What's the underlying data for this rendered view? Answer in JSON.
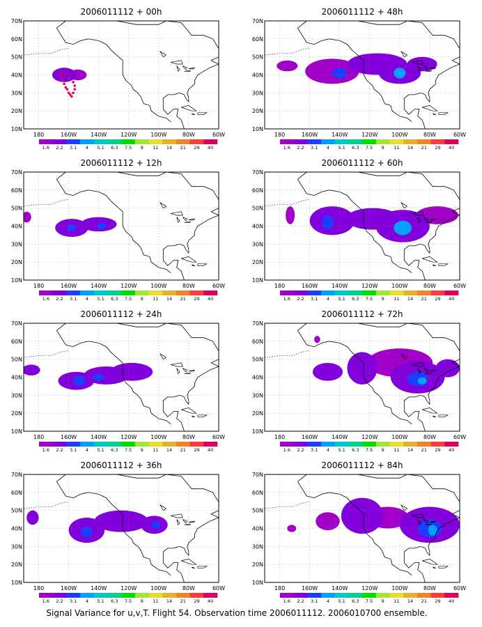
{
  "caption": "Signal Variance for u,v,T. Flight 54. Observation time 2006011112. 2006010700 ensemble.",
  "colors": {
    "scale": [
      "#a000c8",
      "#8200dc",
      "#1e3cff",
      "#00a0ff",
      "#00c8c8",
      "#00d28c",
      "#00dc00",
      "#a0e632",
      "#e6dc32",
      "#e6af2d",
      "#f08228",
      "#fa3c3c",
      "#dc0064"
    ],
    "frame": "#000000",
    "grid": "#808080",
    "background": "#ffffff"
  },
  "chart_data": [
    {
      "type": "heatmap",
      "title": "2006011112 + 00h",
      "xticks": [
        "180",
        "160W",
        "140W",
        "120W",
        "100W",
        "80W",
        "60W"
      ],
      "yticks": [
        "10N",
        "20N",
        "30N",
        "40N",
        "50N",
        "60N",
        "70N"
      ],
      "xlim": [
        -190,
        -60
      ],
      "ylim": [
        10,
        70
      ],
      "colorbar_labels": [
        "1.6",
        "2.2",
        "3.1",
        "4",
        "5.1",
        "6.3",
        "7.5",
        "9",
        "11",
        "14",
        "21",
        "29",
        "40"
      ],
      "blobs": [
        {
          "lon": -163,
          "lat": 40,
          "rx": 8,
          "ry": 4,
          "level": 1
        },
        {
          "lon": -154,
          "lat": 40,
          "rx": 6,
          "ry": 3,
          "level": 0
        }
      ],
      "track": [
        [
          -165,
          39
        ],
        [
          -164,
          37
        ],
        [
          -163,
          35
        ],
        [
          -162,
          33
        ],
        [
          -161,
          32
        ],
        [
          -160,
          30
        ],
        [
          -159,
          29
        ],
        [
          -158,
          28
        ],
        [
          -157,
          30
        ],
        [
          -156,
          32
        ],
        [
          -156,
          34
        ],
        [
          -157,
          36
        ],
        [
          -160,
          38
        ],
        [
          -162,
          41
        ],
        [
          -165,
          41
        ]
      ]
    },
    {
      "type": "heatmap",
      "title": "2006011112 + 48h",
      "xticks": [
        "180",
        "160W",
        "140W",
        "120W",
        "100W",
        "80W",
        "60W"
      ],
      "yticks": [
        "10N",
        "20N",
        "30N",
        "40N",
        "50N",
        "60N",
        "70N"
      ],
      "xlim": [
        -190,
        -60
      ],
      "ylim": [
        10,
        70
      ],
      "colorbar_labels": [
        "1.6",
        "2.2",
        "3.1",
        "4",
        "5.1",
        "6.3",
        "7.5",
        "9",
        "11",
        "14",
        "21",
        "29",
        "40"
      ],
      "blobs": [
        {
          "lon": -175,
          "lat": 45,
          "rx": 7,
          "ry": 3,
          "level": 0
        },
        {
          "lon": -145,
          "lat": 42,
          "rx": 18,
          "ry": 7,
          "level": 0
        },
        {
          "lon": -115,
          "lat": 46,
          "rx": 20,
          "ry": 6,
          "level": 1
        },
        {
          "lon": -100,
          "lat": 41,
          "rx": 14,
          "ry": 6,
          "level": 1
        },
        {
          "lon": -100,
          "lat": 41,
          "rx": 4,
          "ry": 3,
          "level": 3
        },
        {
          "lon": -140,
          "lat": 41,
          "rx": 5,
          "ry": 3,
          "level": 2
        },
        {
          "lon": -85,
          "lat": 46,
          "rx": 10,
          "ry": 4,
          "level": 1
        }
      ],
      "track": []
    },
    {
      "type": "heatmap",
      "title": "2006011112 + 12h",
      "xticks": [
        "180",
        "160W",
        "140W",
        "120W",
        "100W",
        "80W",
        "60W"
      ],
      "yticks": [
        "10N",
        "20N",
        "30N",
        "40N",
        "50N",
        "60N",
        "70N"
      ],
      "xlim": [
        -190,
        -60
      ],
      "ylim": [
        10,
        70
      ],
      "colorbar_labels": [
        "1.6",
        "2.2",
        "3.1",
        "4",
        "5.1",
        "6.3",
        "7.5",
        "9",
        "11",
        "14",
        "21",
        "29",
        "40"
      ],
      "blobs": [
        {
          "lon": -188,
          "lat": 45,
          "rx": 3,
          "ry": 3,
          "level": 0
        },
        {
          "lon": -158,
          "lat": 39,
          "rx": 11,
          "ry": 5,
          "level": 1
        },
        {
          "lon": -140,
          "lat": 41,
          "rx": 12,
          "ry": 4,
          "level": 1
        },
        {
          "lon": -158,
          "lat": 39,
          "rx": 3,
          "ry": 2,
          "level": 2
        },
        {
          "lon": -138,
          "lat": 40,
          "rx": 3,
          "ry": 2,
          "level": 2
        }
      ],
      "track": []
    },
    {
      "type": "heatmap",
      "title": "2006011112 + 60h",
      "xticks": [
        "180",
        "160W",
        "140W",
        "120W",
        "100W",
        "80W",
        "60W"
      ],
      "yticks": [
        "10N",
        "20N",
        "30N",
        "40N",
        "50N",
        "60N",
        "70N"
      ],
      "xlim": [
        -190,
        -60
      ],
      "ylim": [
        10,
        70
      ],
      "colorbar_labels": [
        "1.6",
        "2.2",
        "3.1",
        "4",
        "5.1",
        "6.3",
        "7.5",
        "9",
        "11",
        "14",
        "21",
        "29",
        "40"
      ],
      "blobs": [
        {
          "lon": -173,
          "lat": 46,
          "rx": 3,
          "ry": 5,
          "level": 0
        },
        {
          "lon": -145,
          "lat": 43,
          "rx": 15,
          "ry": 8,
          "level": 1
        },
        {
          "lon": -118,
          "lat": 44,
          "rx": 18,
          "ry": 6,
          "level": 1
        },
        {
          "lon": -98,
          "lat": 40,
          "rx": 18,
          "ry": 9,
          "level": 1
        },
        {
          "lon": -98,
          "lat": 39,
          "rx": 6,
          "ry": 4,
          "level": 3
        },
        {
          "lon": -148,
          "lat": 42,
          "rx": 4,
          "ry": 4,
          "level": 2
        },
        {
          "lon": -75,
          "lat": 46,
          "rx": 14,
          "ry": 5,
          "level": 0
        }
      ],
      "track": []
    },
    {
      "type": "heatmap",
      "title": "2006011112 + 24h",
      "xticks": [
        "180",
        "160W",
        "140W",
        "120W",
        "100W",
        "80W",
        "60W"
      ],
      "yticks": [
        "10N",
        "20N",
        "30N",
        "40N",
        "50N",
        "60N",
        "70N"
      ],
      "xlim": [
        -190,
        -60
      ],
      "ylim": [
        10,
        70
      ],
      "colorbar_labels": [
        "1.6",
        "2.2",
        "3.1",
        "4",
        "5.1",
        "6.3",
        "7.5",
        "9",
        "11",
        "14",
        "21",
        "29",
        "40"
      ],
      "blobs": [
        {
          "lon": -185,
          "lat": 44,
          "rx": 6,
          "ry": 3,
          "level": 1
        },
        {
          "lon": -155,
          "lat": 38,
          "rx": 12,
          "ry": 5,
          "level": 1
        },
        {
          "lon": -135,
          "lat": 41,
          "rx": 15,
          "ry": 5,
          "level": 1
        },
        {
          "lon": -118,
          "lat": 43,
          "rx": 14,
          "ry": 5,
          "level": 1
        },
        {
          "lon": -153,
          "lat": 38,
          "rx": 4,
          "ry": 3,
          "level": 2
        },
        {
          "lon": -140,
          "lat": 40,
          "rx": 4,
          "ry": 2,
          "level": 2
        }
      ],
      "track": []
    },
    {
      "type": "heatmap",
      "title": "2006011112 + 72h",
      "xticks": [
        "180",
        "160W",
        "140W",
        "120W",
        "100W",
        "80W",
        "60W"
      ],
      "yticks": [
        "10N",
        "20N",
        "30N",
        "40N",
        "50N",
        "60N",
        "70N"
      ],
      "xlim": [
        -190,
        -60
      ],
      "ylim": [
        10,
        70
      ],
      "colorbar_labels": [
        "1.6",
        "2.2",
        "3.1",
        "4",
        "5.1",
        "6.3",
        "7.5",
        "9",
        "11",
        "14",
        "21",
        "29",
        "40"
      ],
      "blobs": [
        {
          "lon": -155,
          "lat": 61,
          "rx": 2,
          "ry": 2,
          "level": 0
        },
        {
          "lon": -148,
          "lat": 43,
          "rx": 10,
          "ry": 5,
          "level": 1
        },
        {
          "lon": -125,
          "lat": 45,
          "rx": 10,
          "ry": 9,
          "level": 1
        },
        {
          "lon": -100,
          "lat": 48,
          "rx": 22,
          "ry": 8,
          "level": 0
        },
        {
          "lon": -88,
          "lat": 40,
          "rx": 18,
          "ry": 9,
          "level": 1
        },
        {
          "lon": -88,
          "lat": 39,
          "rx": 7,
          "ry": 4,
          "level": 2
        },
        {
          "lon": -85,
          "lat": 38,
          "rx": 3,
          "ry": 2,
          "level": 3
        },
        {
          "lon": -68,
          "lat": 45,
          "rx": 8,
          "ry": 5,
          "level": 1
        }
      ],
      "track": []
    },
    {
      "type": "heatmap",
      "title": "2006011112 + 36h",
      "xticks": [
        "180",
        "160W",
        "140W",
        "120W",
        "100W",
        "80W",
        "60W"
      ],
      "yticks": [
        "10N",
        "20N",
        "30N",
        "40N",
        "50N",
        "60N",
        "70N"
      ],
      "xlim": [
        -190,
        -60
      ],
      "ylim": [
        10,
        70
      ],
      "colorbar_labels": [
        "1.6",
        "2.2",
        "3.1",
        "4",
        "5.1",
        "6.3",
        "7.5",
        "9",
        "11",
        "14",
        "21",
        "29",
        "40"
      ],
      "blobs": [
        {
          "lon": -184,
          "lat": 46,
          "rx": 4,
          "ry": 4,
          "level": 1
        },
        {
          "lon": -148,
          "lat": 39,
          "rx": 12,
          "ry": 7,
          "level": 1
        },
        {
          "lon": -125,
          "lat": 44,
          "rx": 18,
          "ry": 6,
          "level": 1
        },
        {
          "lon": -103,
          "lat": 42,
          "rx": 9,
          "ry": 5,
          "level": 1
        },
        {
          "lon": -148,
          "lat": 38,
          "rx": 4,
          "ry": 3,
          "level": 2
        },
        {
          "lon": -102,
          "lat": 42,
          "rx": 3,
          "ry": 2,
          "level": 2
        }
      ],
      "track": []
    },
    {
      "type": "heatmap",
      "title": "2006011112 + 84h",
      "xticks": [
        "180",
        "160W",
        "140W",
        "120W",
        "100W",
        "80W",
        "60W"
      ],
      "yticks": [
        "10N",
        "20N",
        "30N",
        "40N",
        "50N",
        "60N",
        "70N"
      ],
      "xlim": [
        -190,
        -60
      ],
      "ylim": [
        10,
        70
      ],
      "colorbar_labels": [
        "1.6",
        "2.2",
        "3.1",
        "4",
        "5.1",
        "6.3",
        "7.5",
        "9",
        "11",
        "14",
        "21",
        "29",
        "40"
      ],
      "blobs": [
        {
          "lon": -172,
          "lat": 40,
          "rx": 3,
          "ry": 2,
          "level": 0
        },
        {
          "lon": -148,
          "lat": 44,
          "rx": 8,
          "ry": 5,
          "level": 0
        },
        {
          "lon": -125,
          "lat": 47,
          "rx": 14,
          "ry": 10,
          "level": 1
        },
        {
          "lon": -108,
          "lat": 46,
          "rx": 14,
          "ry": 6,
          "level": 0
        },
        {
          "lon": -80,
          "lat": 42,
          "rx": 20,
          "ry": 10,
          "level": 1
        },
        {
          "lon": -80,
          "lat": 40,
          "rx": 8,
          "ry": 5,
          "level": 2
        },
        {
          "lon": -78,
          "lat": 39,
          "rx": 3,
          "ry": 3,
          "level": 3
        }
      ],
      "track": []
    }
  ]
}
